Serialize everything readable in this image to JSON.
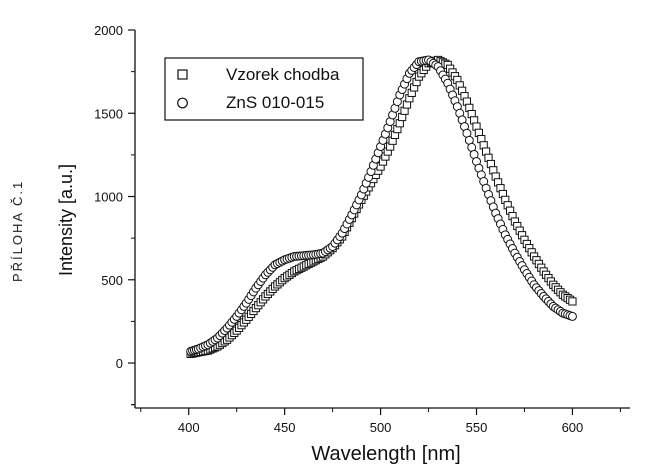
{
  "side_label": "PŘÍLOHA Č.1",
  "chart_data": {
    "type": "scatter",
    "xlabel": "Wavelength [nm]",
    "ylabel": "Intensity [a.u.]",
    "xlim": [
      372,
      630
    ],
    "ylim": [
      -270,
      2000
    ],
    "x_ticks": [
      400,
      450,
      500,
      550,
      600
    ],
    "y_ticks": [
      0,
      500,
      1000,
      1500,
      2000
    ],
    "grid": false,
    "legend_position": "top-left",
    "series": [
      {
        "name": "Vzorek chodba",
        "marker": "square",
        "x": [
          401,
          405,
          410,
          415,
          420,
          425,
          430,
          435,
          440,
          445,
          450,
          455,
          460,
          465,
          470,
          475,
          480,
          485,
          490,
          495,
          500,
          505,
          510,
          515,
          520,
          525,
          530,
          535,
          540,
          545,
          550,
          555,
          560,
          565,
          570,
          575,
          580,
          585,
          590,
          595,
          600
        ],
        "values": [
          55,
          65,
          75,
          100,
          140,
          195,
          260,
          330,
          400,
          460,
          510,
          550,
          580,
          610,
          640,
          690,
          760,
          870,
          980,
          1080,
          1180,
          1300,
          1440,
          1590,
          1720,
          1800,
          1820,
          1790,
          1700,
          1570,
          1420,
          1270,
          1120,
          980,
          850,
          740,
          640,
          550,
          470,
          410,
          370
        ]
      },
      {
        "name": "ZnS 010-015",
        "marker": "circle",
        "x": [
          401,
          405,
          410,
          415,
          420,
          425,
          430,
          435,
          440,
          445,
          450,
          455,
          460,
          465,
          470,
          475,
          480,
          485,
          490,
          495,
          500,
          505,
          510,
          515,
          520,
          525,
          530,
          535,
          540,
          545,
          550,
          555,
          560,
          565,
          570,
          575,
          580,
          585,
          590,
          595,
          600
        ],
        "values": [
          70,
          85,
          110,
          150,
          210,
          280,
          360,
          450,
          530,
          590,
          620,
          640,
          645,
          650,
          660,
          700,
          780,
          890,
          1010,
          1150,
          1300,
          1450,
          1610,
          1740,
          1810,
          1820,
          1780,
          1680,
          1540,
          1380,
          1210,
          1050,
          900,
          770,
          660,
          560,
          470,
          400,
          340,
          300,
          280
        ]
      }
    ]
  }
}
